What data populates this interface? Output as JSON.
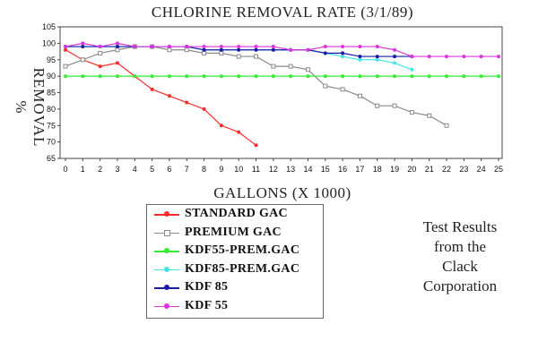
{
  "chart_data": {
    "type": "line",
    "title": "CHLORINE REMOVAL RATE (3/1/89)",
    "xlabel": "GALLONS (X 1000)",
    "ylabel": "REMOVAL %",
    "xlim": [
      0,
      25
    ],
    "ylim": [
      65,
      105
    ],
    "x_ticks": [
      0,
      1,
      2,
      3,
      4,
      5,
      6,
      7,
      8,
      9,
      10,
      11,
      12,
      13,
      14,
      15,
      16,
      17,
      18,
      19,
      20,
      21,
      22,
      23,
      24,
      25
    ],
    "y_ticks": [
      65,
      70,
      75,
      80,
      85,
      90,
      95,
      100,
      105
    ],
    "grid": false,
    "legend_position": "bottom-center",
    "series": [
      {
        "name": "STANDARD GAC",
        "color": "#ff2a2a",
        "marker": "dot",
        "x": [
          0,
          1,
          2,
          3,
          4,
          5,
          6,
          7,
          8,
          9,
          10,
          11
        ],
        "y": [
          98,
          95,
          93,
          94,
          90,
          86,
          84,
          82,
          80,
          75,
          73,
          69
        ]
      },
      {
        "name": "PREMIUM GAC",
        "color": "#8a8a8a",
        "marker": "square-open",
        "x": [
          0,
          1,
          2,
          3,
          4,
          5,
          6,
          7,
          8,
          9,
          10,
          11,
          12,
          13,
          14,
          15,
          16,
          17,
          18,
          19,
          20,
          21,
          22
        ],
        "y": [
          93,
          95,
          97,
          98,
          99,
          99,
          98,
          98,
          97,
          97,
          96,
          96,
          93,
          93,
          92,
          87,
          86,
          84,
          81,
          81,
          79,
          78,
          75
        ]
      },
      {
        "name": "KDF55-PREM.GAC",
        "color": "#33ee33",
        "marker": "dot",
        "x": [
          0,
          1,
          2,
          3,
          4,
          5,
          6,
          7,
          8,
          9,
          10,
          11,
          12,
          13,
          14,
          15,
          16,
          17,
          18,
          19,
          20,
          21,
          22,
          23,
          24,
          25
        ],
        "y": [
          90,
          90,
          90,
          90,
          90,
          90,
          90,
          90,
          90,
          90,
          90,
          90,
          90,
          90,
          90,
          90,
          90,
          90,
          90,
          90,
          90,
          90,
          90,
          90,
          90,
          90
        ]
      },
      {
        "name": "KDF85-PREM.GAC",
        "color": "#44e6e6",
        "marker": "dot",
        "x": [
          0,
          1,
          2,
          3,
          4,
          5,
          6,
          7,
          8,
          9,
          10,
          11,
          12,
          13,
          14,
          15,
          16,
          17,
          18,
          19,
          20
        ],
        "y": [
          99,
          99,
          99,
          99,
          99,
          99,
          99,
          99,
          98,
          98,
          98,
          98,
          98,
          98,
          98,
          97,
          96,
          95,
          95,
          94,
          92
        ]
      },
      {
        "name": "KDF 85",
        "color": "#1a1aa8",
        "marker": "dot",
        "x": [
          0,
          1,
          2,
          3,
          4,
          5,
          6,
          7,
          8,
          9,
          10,
          11,
          12,
          13,
          14,
          15,
          16,
          17,
          18,
          19,
          20
        ],
        "y": [
          99,
          99,
          99,
          99,
          99,
          99,
          99,
          99,
          98,
          98,
          98,
          98,
          98,
          98,
          98,
          97,
          97,
          96,
          96,
          96,
          96
        ]
      },
      {
        "name": "KDF 55",
        "color": "#dd33dd",
        "marker": "dot",
        "x": [
          0,
          1,
          2,
          3,
          4,
          5,
          6,
          7,
          8,
          9,
          10,
          11,
          12,
          13,
          14,
          15,
          16,
          17,
          18,
          19,
          20,
          21,
          22,
          23,
          24,
          25
        ],
        "y": [
          99,
          100,
          99,
          100,
          99,
          99,
          99,
          99,
          99,
          99,
          99,
          99,
          99,
          98,
          98,
          99,
          99,
          99,
          99,
          98,
          96,
          96,
          96,
          96,
          96,
          96
        ]
      }
    ]
  },
  "note": [
    "Test Results",
    "from the",
    "Clack",
    "Corporation"
  ]
}
